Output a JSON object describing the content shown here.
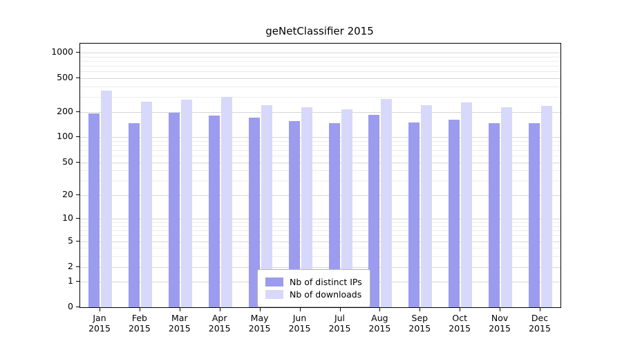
{
  "chart_data": {
    "type": "bar",
    "title": "geNetClassifier 2015",
    "categories": [
      "Jan",
      "Feb",
      "Mar",
      "Apr",
      "May",
      "Jun",
      "Jul",
      "Aug",
      "Sep",
      "Oct",
      "Nov",
      "Dec"
    ],
    "category_year": "2015",
    "series": [
      {
        "name": "Nb of distinct IPs",
        "color": "#9b9bef",
        "values": [
          190,
          148,
          195,
          182,
          170,
          155,
          148,
          186,
          150,
          162,
          146,
          148
        ]
      },
      {
        "name": "Nb of downloads",
        "color": "#d8d8fa",
        "values": [
          355,
          262,
          278,
          300,
          240,
          226,
          214,
          284,
          240,
          260,
          226,
          234
        ]
      }
    ],
    "yscale": "log10(1+x)",
    "y_ticks": [
      0,
      1,
      2,
      5,
      10,
      20,
      50,
      100,
      200,
      500,
      1000
    ],
    "ylim": [
      0,
      1280
    ],
    "grid": true,
    "legend_position": "lower center",
    "xlabel": "",
    "ylabel": ""
  }
}
